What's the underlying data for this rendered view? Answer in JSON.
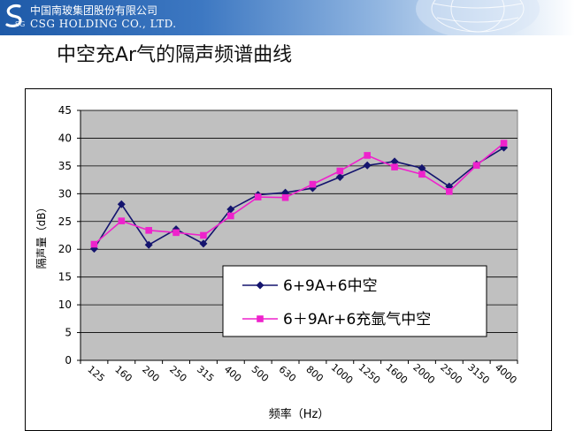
{
  "header": {
    "company_cn": "中国南玻集团股份有限公司",
    "company_en": "CSG HOLDING CO., LTD.",
    "logo_text": "SG"
  },
  "slide": {
    "title": "中空充Ar气的隔声频谱曲线"
  },
  "colors": {
    "series1": "#14146e",
    "series2": "#ee22cc",
    "plot_bg": "#c0c0c0",
    "header": "#1e5aa8"
  },
  "chart_data": {
    "type": "line",
    "title": "",
    "xlabel": "频率（Hz）",
    "ylabel": "隔声量（dB）",
    "ylim": [
      0,
      45
    ],
    "yticks": [
      0,
      5,
      10,
      15,
      20,
      25,
      30,
      35,
      40,
      45
    ],
    "grid": true,
    "legend_position": "center-right",
    "categories": [
      "125",
      "160",
      "200",
      "250",
      "315",
      "400",
      "500",
      "630",
      "800",
      "1000",
      "1250",
      "1600",
      "2000",
      "2500",
      "3150",
      "4000"
    ],
    "series": [
      {
        "name": "6+9A+6中空",
        "marker": "diamond",
        "values": [
          20.1,
          28.1,
          20.8,
          23.6,
          21.0,
          27.2,
          29.8,
          30.2,
          31.0,
          33.0,
          35.1,
          35.8,
          34.6,
          31.3,
          35.3,
          38.3
        ]
      },
      {
        "name": "6＋9Ar+6充氩气中空",
        "marker": "square",
        "values": [
          20.9,
          25.1,
          23.4,
          23.0,
          22.5,
          26.0,
          29.4,
          29.3,
          31.7,
          34.1,
          36.9,
          34.8,
          33.5,
          30.4,
          35.1,
          39.1
        ]
      }
    ]
  }
}
